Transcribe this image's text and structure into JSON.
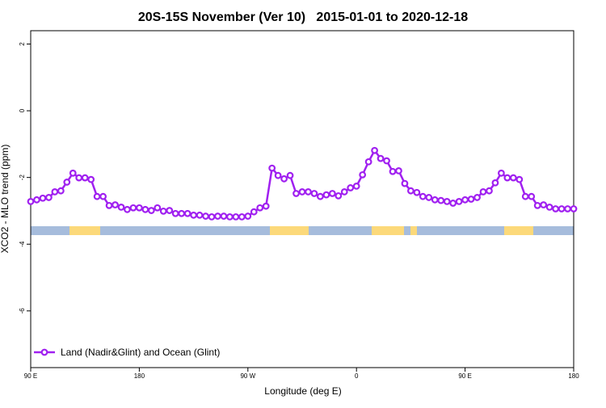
{
  "chart_data": {
    "type": "line",
    "title": "20S-15S November (Ver 10)   2015-01-01 to 2020-12-18",
    "x_label": "Longitude (deg E)",
    "y_label": "XCO2 - MLO trend (ppm)",
    "xlim": [
      90,
      540
    ],
    "ylim": [
      -7.7,
      2.4
    ],
    "xticks": [
      {
        "value": 90,
        "label": "90 E"
      },
      180,
      {
        "value": 270,
        "label": "90 W"
      },
      {
        "value": 360,
        "label": "0"
      },
      {
        "value": 450,
        "label": "90 E"
      },
      {
        "value": 540,
        "label": "180"
      }
    ],
    "yticks": [
      2,
      0,
      -2,
      -4,
      -6
    ],
    "legend_position": "bottom-left",
    "x": [
      90,
      95,
      100,
      105,
      110,
      115,
      120,
      125,
      130,
      135,
      140,
      145,
      150,
      155,
      160,
      165,
      170,
      175,
      180,
      185,
      190,
      195,
      200,
      205,
      210,
      215,
      220,
      225,
      230,
      235,
      240,
      245,
      250,
      255,
      260,
      265,
      270,
      275,
      280,
      285,
      290,
      295,
      300,
      305,
      310,
      315,
      320,
      325,
      330,
      335,
      340,
      345,
      350,
      355,
      360,
      365,
      370,
      375,
      380,
      385,
      390,
      395,
      400,
      405,
      410,
      415,
      420,
      425,
      430,
      435,
      440,
      445,
      450,
      455,
      460,
      465,
      470,
      475,
      480,
      485,
      490,
      495,
      500,
      505,
      510,
      515,
      520,
      525,
      530,
      535,
      540
    ],
    "series": [
      {
        "name": "Land (Nadir&Glint) and Ocean (Glint)",
        "color": "#a020f0",
        "values": [
          -2.72,
          -2.67,
          -2.62,
          -2.6,
          -2.43,
          -2.4,
          -2.14,
          -1.87,
          -2.01,
          -2.01,
          -2.06,
          -2.57,
          -2.57,
          -2.84,
          -2.82,
          -2.89,
          -2.96,
          -2.91,
          -2.91,
          -2.96,
          -2.99,
          -2.91,
          -3.01,
          -2.99,
          -3.08,
          -3.08,
          -3.08,
          -3.13,
          -3.13,
          -3.16,
          -3.18,
          -3.16,
          -3.16,
          -3.18,
          -3.18,
          -3.18,
          -3.16,
          -3.03,
          -2.91,
          -2.86,
          -1.72,
          -1.94,
          -2.04,
          -1.94,
          -2.48,
          -2.43,
          -2.43,
          -2.48,
          -2.57,
          -2.52,
          -2.48,
          -2.55,
          -2.43,
          -2.31,
          -2.26,
          -1.92,
          -1.53,
          -1.19,
          -1.43,
          -1.5,
          -1.82,
          -1.8,
          -2.18,
          -2.4,
          -2.45,
          -2.57,
          -2.6,
          -2.67,
          -2.69,
          -2.72,
          -2.77,
          -2.72,
          -2.67,
          -2.65,
          -2.6,
          -2.43,
          -2.4,
          -2.16,
          -1.87,
          -2.01,
          -2.01,
          -2.06,
          -2.57,
          -2.57,
          -2.84,
          -2.82,
          -2.89,
          -2.94,
          -2.94,
          -2.94,
          -2.94
        ]
      }
    ]
  }
}
